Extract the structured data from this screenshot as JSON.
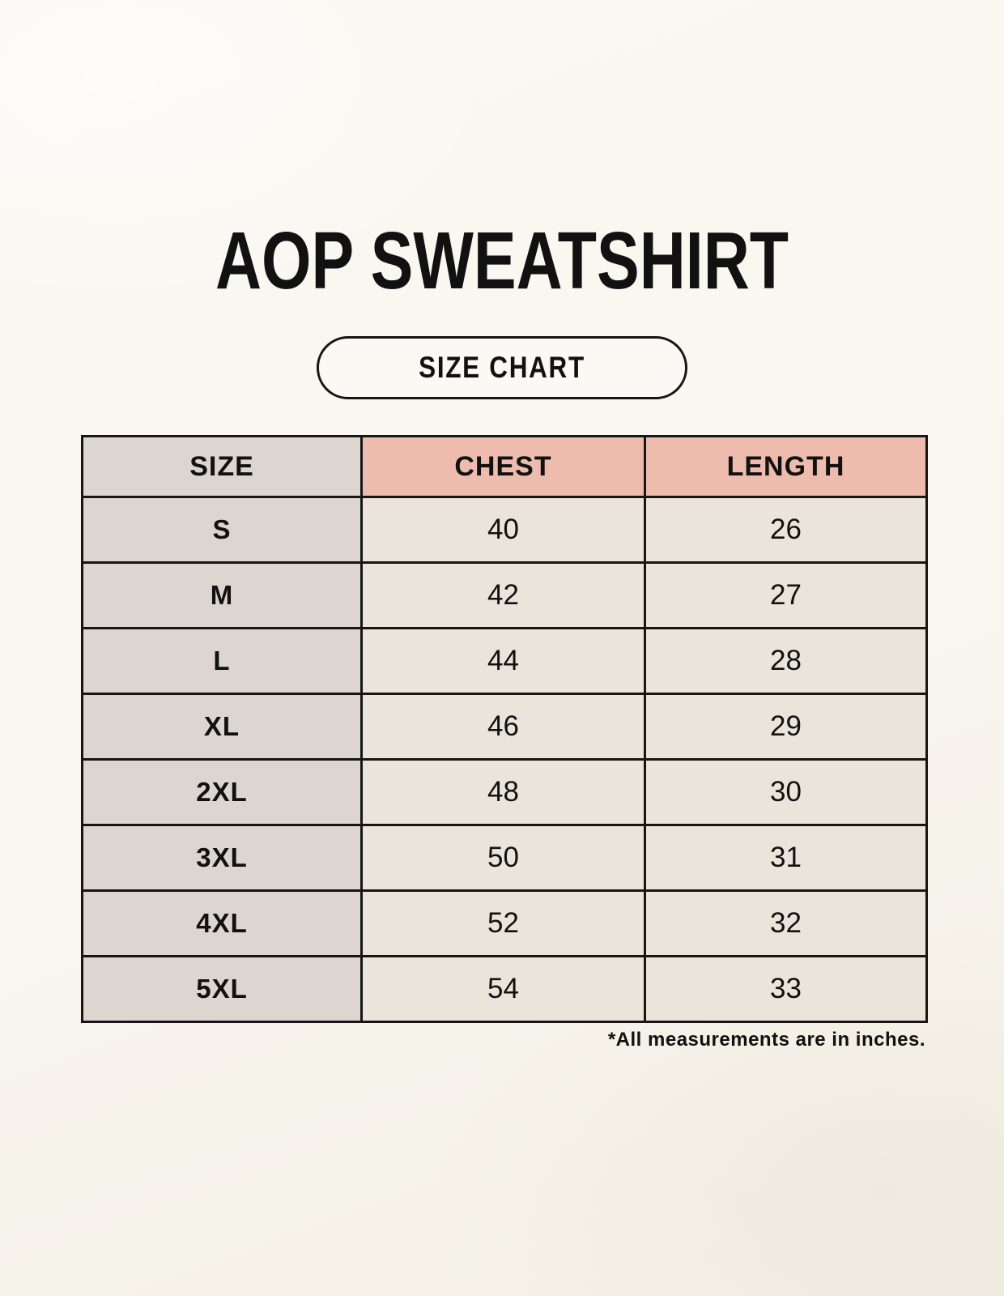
{
  "title": "AOP SWEATSHIRT",
  "badge": {
    "label": "SIZE CHART"
  },
  "size_table": {
    "columns": [
      "SIZE",
      "CHEST",
      "LENGTH"
    ],
    "rows": [
      {
        "size": "S",
        "chest": "40",
        "length": "26"
      },
      {
        "size": "M",
        "chest": "42",
        "length": "27"
      },
      {
        "size": "L",
        "chest": "44",
        "length": "28"
      },
      {
        "size": "XL",
        "chest": "46",
        "length": "29"
      },
      {
        "size": "2XL",
        "chest": "48",
        "length": "30"
      },
      {
        "size": "3XL",
        "chest": "50",
        "length": "31"
      },
      {
        "size": "4XL",
        "chest": "52",
        "length": "32"
      },
      {
        "size": "5XL",
        "chest": "54",
        "length": "33"
      }
    ]
  },
  "footnote": "*All measurements are in inches.",
  "colors": {
    "background": "#FAF7F0",
    "header_accent": "#EEBCAE",
    "label_column": "#DCD5D0",
    "cell_background": "#EAE4DA",
    "border": "#161616",
    "text": "#111111"
  }
}
